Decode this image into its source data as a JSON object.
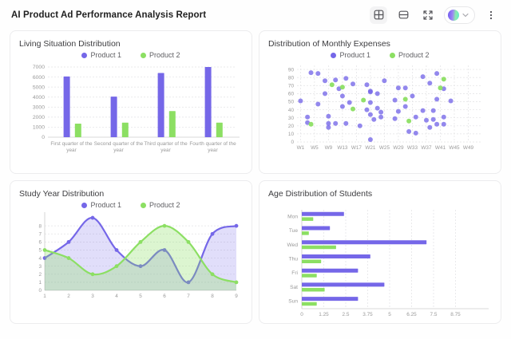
{
  "header": {
    "title": "AI Product Ad Performance Analysis Report",
    "icons": [
      "grid-layout-icon",
      "rows-layout-icon",
      "fullscreen-icon",
      "theme-selector",
      "more-menu-icon"
    ]
  },
  "colors": {
    "purple": "#7567e8",
    "green": "#8cdf63",
    "axis_text": "#999999",
    "grid_line": "#e2e2e4",
    "axis_line": "#cccccc"
  },
  "chart_data": [
    {
      "type": "bar",
      "title": "Living Situation Distribution",
      "legend_position": "top",
      "grid": true,
      "categories": [
        "First quarter of the year",
        "Second quarter of the year",
        "Third quarter of the year",
        "Fourth quarter of the year"
      ],
      "series": [
        {
          "name": "Product 1",
          "color": "purple",
          "values": [
            6050,
            4050,
            6400,
            7000
          ]
        },
        {
          "name": "Product 2",
          "color": "green",
          "values": [
            1350,
            1450,
            2600,
            1450
          ]
        }
      ],
      "ylim": [
        0,
        7000
      ],
      "yticks": [
        0,
        1000,
        2000,
        3000,
        4000,
        5000,
        6000,
        7000
      ],
      "xlabel": "",
      "ylabel": ""
    },
    {
      "type": "scatter",
      "title": "Distribution of Monthly Expenses",
      "legend_position": "top",
      "grid": true,
      "xlim": [
        0,
        53
      ],
      "ylim": [
        0,
        90
      ],
      "yticks": [
        0,
        10,
        20,
        30,
        40,
        50,
        60,
        70,
        80,
        90
      ],
      "xticks": [
        "W1",
        "W5",
        "W9",
        "W13",
        "W17",
        "W21",
        "W25",
        "W29",
        "W33",
        "W37",
        "W41",
        "W45",
        "W49"
      ],
      "series": [
        {
          "name": "Product 1",
          "color": "purple",
          "points": [
            [
              1,
              51
            ],
            [
              3,
              31
            ],
            [
              3,
              24
            ],
            [
              4,
              86
            ],
            [
              6,
              85
            ],
            [
              6,
              47
            ],
            [
              8,
              60
            ],
            [
              8,
              76
            ],
            [
              9,
              32
            ],
            [
              9,
              23
            ],
            [
              9,
              18
            ],
            [
              11,
              77
            ],
            [
              11,
              23
            ],
            [
              12,
              66
            ],
            [
              13,
              57
            ],
            [
              13,
              44
            ],
            [
              14,
              79
            ],
            [
              14,
              23
            ],
            [
              15,
              49
            ],
            [
              16,
              72
            ],
            [
              18,
              20
            ],
            [
              20,
              71
            ],
            [
              20,
              40
            ],
            [
              21,
              62
            ],
            [
              21,
              63
            ],
            [
              21,
              49
            ],
            [
              21,
              34
            ],
            [
              21,
              3
            ],
            [
              22,
              28
            ],
            [
              23,
              60
            ],
            [
              23,
              42
            ],
            [
              24,
              37
            ],
            [
              24,
              31
            ],
            [
              25,
              76
            ],
            [
              28,
              52
            ],
            [
              28,
              29
            ],
            [
              29,
              67
            ],
            [
              29,
              38
            ],
            [
              31,
              44
            ],
            [
              31,
              67
            ],
            [
              32,
              13
            ],
            [
              33,
              57
            ],
            [
              34,
              11
            ],
            [
              34,
              31
            ],
            [
              36,
              81
            ],
            [
              36,
              39
            ],
            [
              37,
              27
            ],
            [
              38,
              73
            ],
            [
              38,
              18
            ],
            [
              39,
              39
            ],
            [
              39,
              28
            ],
            [
              40,
              85
            ],
            [
              40,
              53
            ],
            [
              40,
              22
            ],
            [
              42,
              31
            ],
            [
              42,
              66
            ],
            [
              42,
              22
            ],
            [
              44,
              51
            ]
          ]
        },
        {
          "name": "Product 2",
          "color": "green",
          "points": [
            [
              4,
              22
            ],
            [
              10,
              71
            ],
            [
              13,
              68
            ],
            [
              16,
              41
            ],
            [
              19,
              52
            ],
            [
              31,
              53
            ],
            [
              32,
              26
            ],
            [
              41,
              67
            ],
            [
              42,
              78
            ]
          ]
        }
      ],
      "xlabel": "",
      "ylabel": ""
    },
    {
      "type": "area",
      "title": "Study Year Distribution",
      "legend_position": "top",
      "grid": true,
      "x": [
        1,
        2,
        3,
        4,
        5,
        6,
        7,
        8,
        9
      ],
      "ylim": [
        0,
        9.5
      ],
      "yticks": [
        0,
        1,
        2,
        3,
        4,
        5,
        6,
        7,
        8
      ],
      "series": [
        {
          "name": "Product 1",
          "color": "purple",
          "values": [
            4,
            6,
            9,
            5,
            3,
            5,
            1,
            7,
            8
          ]
        },
        {
          "name": "Product 2",
          "color": "green",
          "values": [
            5,
            4,
            2,
            3,
            6,
            8,
            6,
            2,
            1
          ]
        }
      ],
      "xlabel": "",
      "ylabel": ""
    },
    {
      "type": "hbar",
      "title": "Age Distribution of Students",
      "legend_position": "none",
      "grid": true,
      "categories": [
        "Mon",
        "Tue",
        "Wed",
        "Thu",
        "Fri",
        "Sat",
        "Sun"
      ],
      "xlim": [
        0,
        10
      ],
      "xticks": [
        0,
        1.25,
        2.5,
        3.75,
        5,
        6.25,
        7.5,
        8.75
      ],
      "series": [
        {
          "name": "Product 1",
          "color": "purple",
          "values": [
            2.4,
            1.6,
            7.1,
            3.9,
            3.2,
            4.7,
            3.2
          ]
        },
        {
          "name": "Product 2",
          "color": "green",
          "values": [
            0.65,
            0.4,
            1.95,
            1.1,
            0.85,
            1.3,
            0.85
          ]
        }
      ],
      "xlabel": "",
      "ylabel": ""
    }
  ]
}
